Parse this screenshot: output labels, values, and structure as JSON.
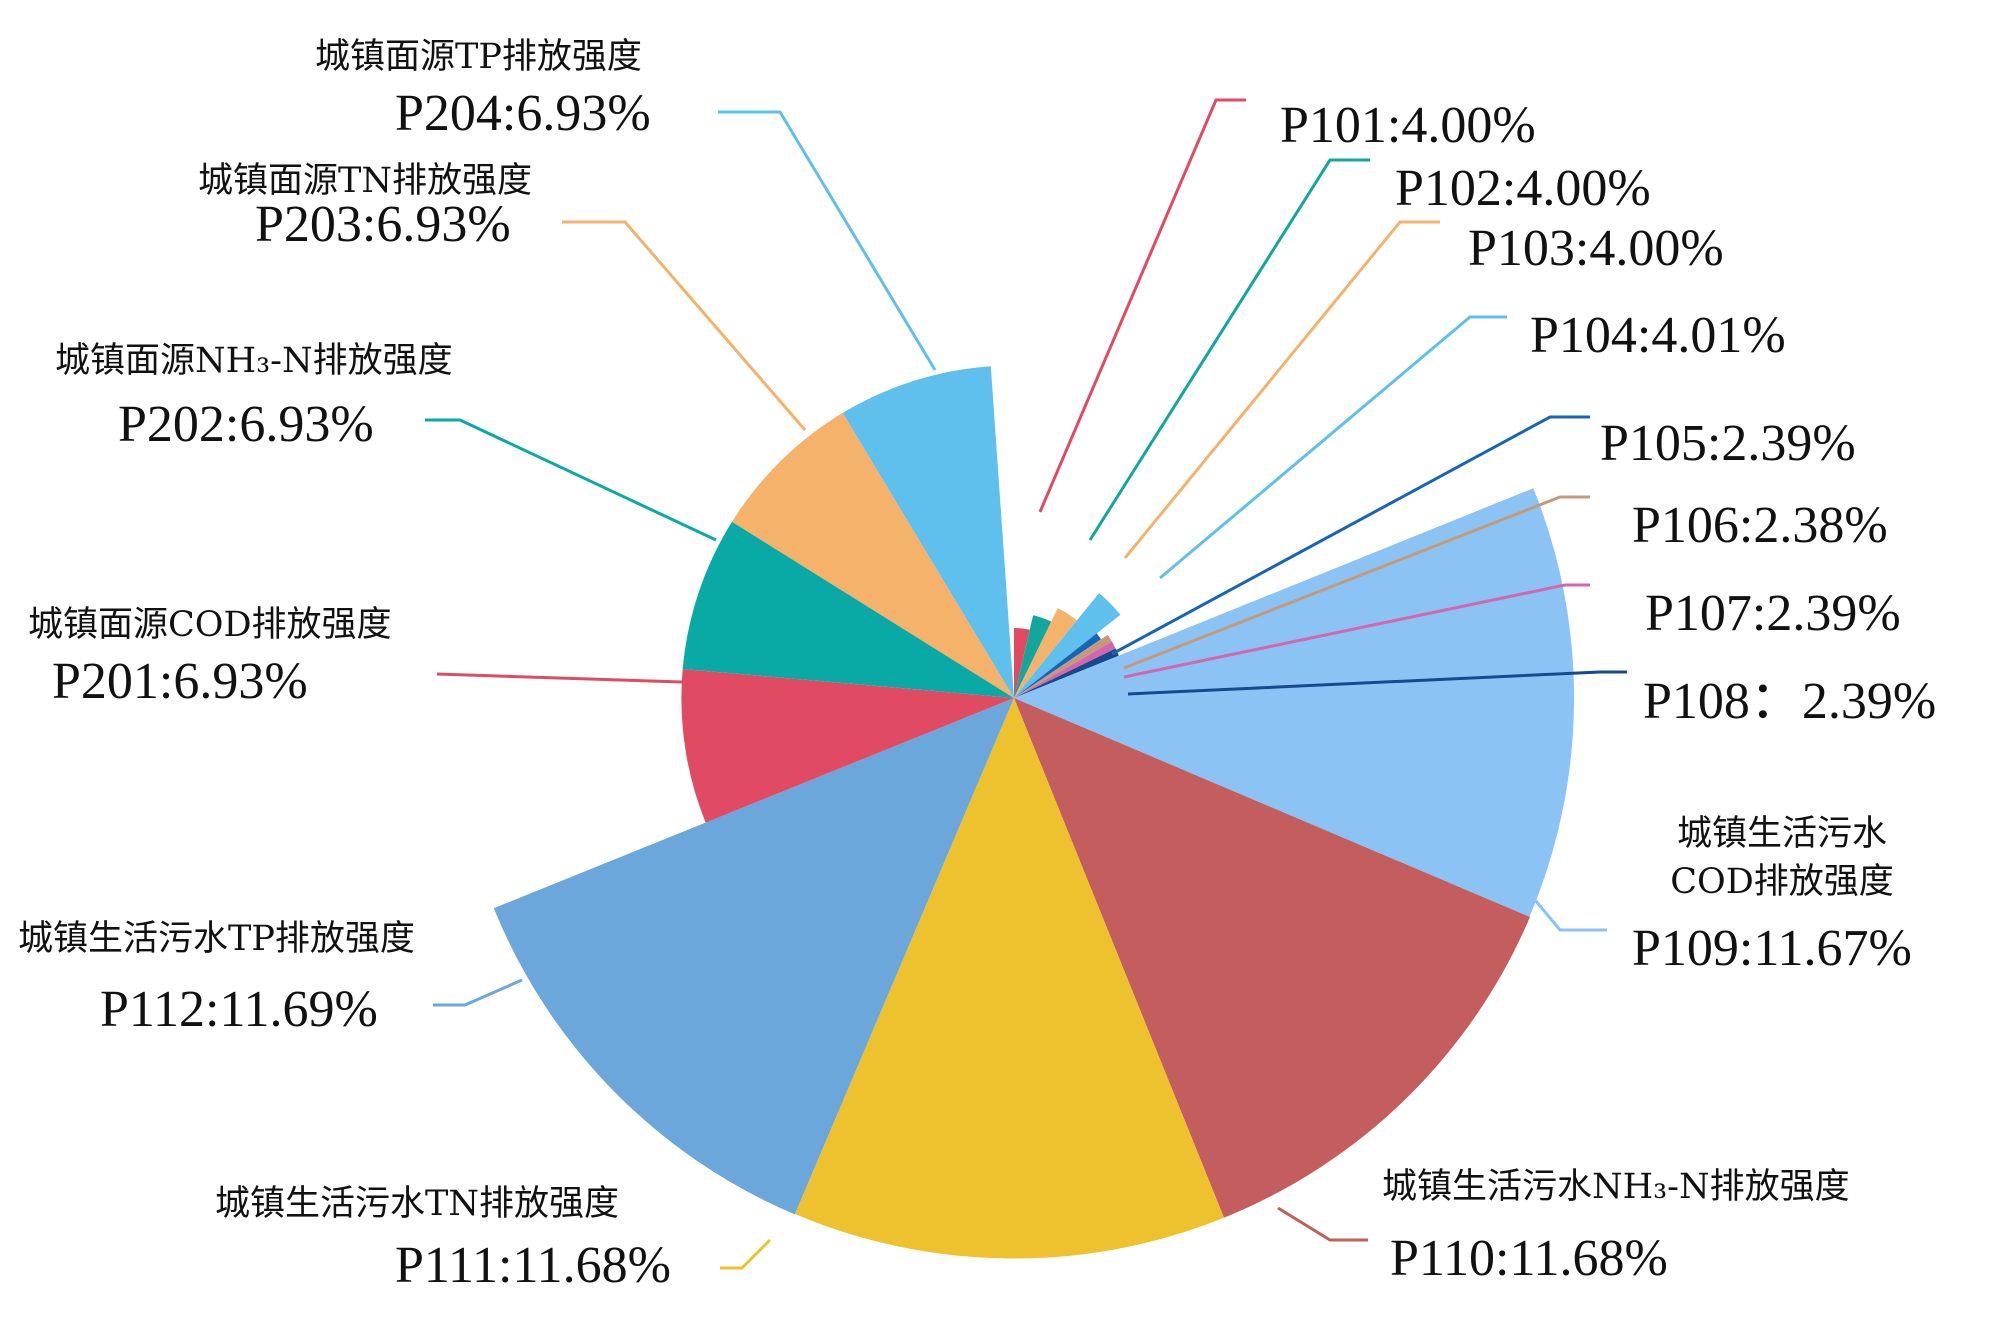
{
  "chart_data": {
    "type": "pie",
    "variant": "rose (radius encodes value)",
    "slices": [
      {
        "code": "P101",
        "value_label": "P101:4.00%",
        "value": 4.0,
        "name_lines": [],
        "color": "#e04a63"
      },
      {
        "code": "P102",
        "value_label": "P102:4.00%",
        "value": 4.0,
        "name_lines": [],
        "color": "#12a69d"
      },
      {
        "code": "P103",
        "value_label": "P103:4.00%",
        "value": 4.0,
        "name_lines": [],
        "color": "#f4b26b"
      },
      {
        "code": "P104",
        "value_label": "P104:4.01%",
        "value": 4.01,
        "name_lines": [],
        "color": "#5fc0ee"
      },
      {
        "code": "P105",
        "value_label": "P105:2.39%",
        "value": 2.39,
        "name_lines": [],
        "color": "#1565b8"
      },
      {
        "code": "P106",
        "value_label": "P106:2.38%",
        "value": 2.38,
        "name_lines": [],
        "color": "#c49a7a"
      },
      {
        "code": "P107",
        "value_label": "P107:2.39%",
        "value": 2.39,
        "name_lines": [],
        "color": "#d466b0"
      },
      {
        "code": "P108",
        "value_label": "P108：2.39%",
        "value": 2.39,
        "name_lines": [],
        "color": "#154a8c"
      },
      {
        "code": "P109",
        "value_label": "P109:11.67%",
        "value": 11.67,
        "name_lines": [
          "城镇生活污水",
          "COD排放强度"
        ],
        "color": "#8cc3f5"
      },
      {
        "code": "P110",
        "value_label": "P110:11.68%",
        "value": 11.68,
        "name_lines": [
          "城镇生活污水NH₃-N排放强度"
        ],
        "color": "#c45e5e"
      },
      {
        "code": "P111",
        "value_label": "P111:11.68%",
        "value": 11.68,
        "name_lines": [
          "城镇生活污水TN排放强度"
        ],
        "color": "#eec22f"
      },
      {
        "code": "P112",
        "value_label": "P112:11.69%",
        "value": 11.69,
        "name_lines": [
          "城镇生活污水TP排放强度"
        ],
        "color": "#6ba7db"
      },
      {
        "code": "P201",
        "value_label": "P201:6.93%",
        "value": 6.93,
        "name_lines": [
          "城镇面源COD排放强度"
        ],
        "color": "#e04a63"
      },
      {
        "code": "P202",
        "value_label": "P202:6.93%",
        "value": 6.93,
        "name_lines": [
          "城镇面源NH₃-N排放强度"
        ],
        "color": "#09aaa6"
      },
      {
        "code": "P203",
        "value_label": "P203:6.93%",
        "value": 6.93,
        "name_lines": [
          "城镇面源TN排放强度"
        ],
        "color": "#f4b26b"
      },
      {
        "code": "P204",
        "value_label": "P204:6.93%",
        "value": 6.93,
        "name_lines": [
          "城镇面源TP排放强度"
        ],
        "color": "#5fc0ee"
      }
    ],
    "legend": "none",
    "labels": "outside with leader lines"
  }
}
